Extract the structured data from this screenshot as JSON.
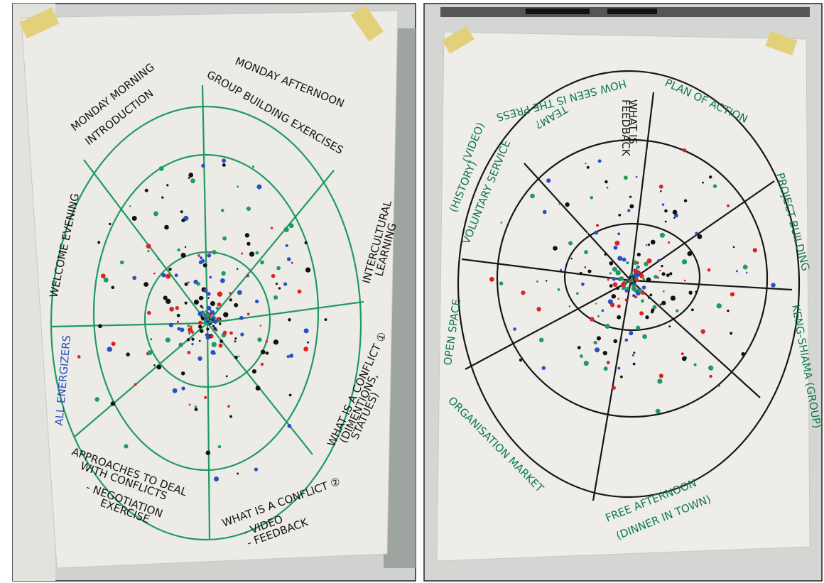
{
  "left_chart": {
    "welcome": "WELCOME EVENING",
    "morning": [
      "MONDAY MORNING",
      "INTRODUCTION"
    ],
    "afternoon": [
      "MONDAY AFTERNOON",
      "GROUP BUILDING EXERCISES"
    ],
    "intercultural": [
      "INTERCULTURAL",
      "LEARNING"
    ],
    "conflict1": [
      "WHAT IS A CONFLICT ①",
      "(DIMENTIONS,",
      "STATUES)"
    ],
    "conflict2": [
      "WHAT IS A CONFLICT ②",
      "- VIDEO",
      "- FEEDBACK"
    ],
    "approaches": [
      "APPROACHES TO DEAL",
      "WITH CONFLICTS",
      "- NEGOTIATION",
      "EXERCISE"
    ],
    "energizers": "ALL ENERGIZERS"
  },
  "right_chart": {
    "plan": "PLAN OF ACTION",
    "press": [
      "HOW SEEN IS THE PRESS",
      "TEAM?"
    ],
    "what": [
      "WHAT IS",
      "FEEDBACK"
    ],
    "voluntary": [
      "VOLUNTARY SERVICE",
      "(HISTORY)",
      "(VIDEO)"
    ],
    "project": "PROJECT BUILDING",
    "open": "OPEN SPACE",
    "keng": "KENG-SHIAMA (GROUP)",
    "market": "ORGANISATION MARKET",
    "free": [
      "FREE AFTERNOON",
      "(DINNER IN TOWN)"
    ]
  }
}
